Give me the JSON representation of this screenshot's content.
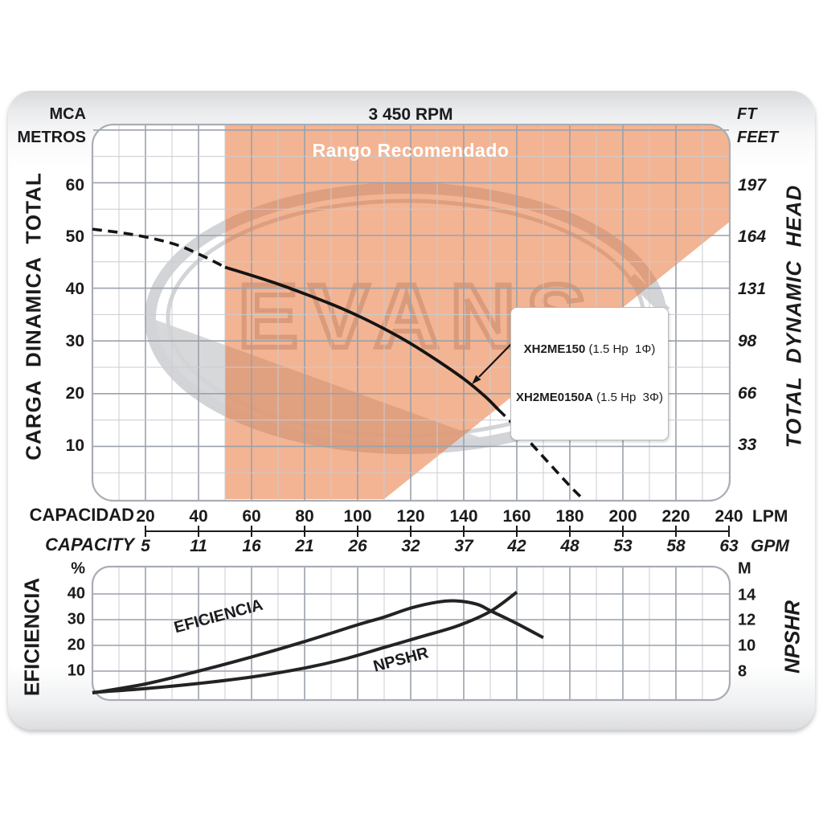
{
  "header": {
    "left_unit_line1": "MCA",
    "left_unit_line2": "METROS",
    "title": "3 450 RPM",
    "right_unit_line1": "FT",
    "right_unit_line2": "FEET"
  },
  "watermark": "EVANS",
  "main_chart": {
    "left_axis_label": "CARGA  DINAMICA  TOTAL",
    "right_axis_label": "TOTAL  DYNAMIC  HEAD",
    "recommended_label": "Rango Recomendado",
    "left_ticks": [
      "60",
      "50",
      "40",
      "30",
      "20",
      "10"
    ],
    "right_ticks": [
      "197",
      "164",
      "131",
      "98",
      "66",
      "33"
    ],
    "annotation": {
      "line1_model": "XH2ME150",
      "line1_spec": " (1.5 Hp  1Φ)",
      "line2_model": "XH2ME0150A",
      "line2_spec": " (1.5 Hp  3Φ)"
    }
  },
  "capacity_axis": {
    "label_top": "CAPACIDAD",
    "label_bottom": "CAPACITY",
    "lpm": [
      "20",
      "40",
      "60",
      "80",
      "100",
      "120",
      "140",
      "160",
      "180",
      "200",
      "220",
      "240"
    ],
    "gpm": [
      "5",
      "11",
      "16",
      "21",
      "26",
      "32",
      "37",
      "42",
      "48",
      "53",
      "58",
      "63"
    ],
    "unit_top": "LPM",
    "unit_bottom": "GPM"
  },
  "bottom_chart": {
    "left_unit": "%",
    "right_unit": "M",
    "left_axis_label": "EFICIENCIA",
    "right_axis_label": "NPSHR",
    "left_ticks": [
      "40",
      "30",
      "20",
      "10"
    ],
    "right_ticks": [
      "14",
      "12",
      "10",
      "8"
    ],
    "eff_curve_label": "EFICIENCIA",
    "npshr_curve_label": "NPSHR"
  },
  "colors": {
    "recommended_fill": "rgba(232,112,48,0.52)",
    "curve": "#141414",
    "grid_major": "#9ba1ab",
    "grid_minor": "#c9ccd2",
    "watermark_grey": "#d2d4d7"
  },
  "chart_data": [
    {
      "type": "line",
      "title": "3 450 RPM",
      "xlabel": "CAPACIDAD / CAPACITY",
      "x_unit": "LPM",
      "x_secondary_unit": "GPM",
      "ylabel": "CARGA DINAMICA TOTAL / TOTAL DYNAMIC HEAD",
      "y_unit_left": "MCA (metros)",
      "y_unit_right": "FT (feet)",
      "xlim": [
        0,
        240
      ],
      "ylim": [
        0,
        71
      ],
      "grid": true,
      "series": [
        {
          "name": "head-curve-extrapolated-low",
          "style": "dashed",
          "points": [
            [
              0,
              51.2
            ],
            [
              15,
              50.2
            ],
            [
              30,
              48.5
            ],
            [
              40,
              46.5
            ],
            [
              50,
              44
            ]
          ]
        },
        {
          "name": "head-curve XH2ME150 / XH2ME0150A",
          "style": "solid",
          "points": [
            [
              50,
              44
            ],
            [
              70,
              40.8
            ],
            [
              90,
              37
            ],
            [
              100,
              34.8
            ],
            [
              110,
              32.3
            ],
            [
              120,
              29.5
            ],
            [
              130,
              26.3
            ],
            [
              140,
              22.8
            ],
            [
              148,
              19.5
            ],
            [
              153,
              17
            ]
          ]
        },
        {
          "name": "head-curve-extrapolated-high",
          "style": "dashed",
          "points": [
            [
              153,
              17
            ],
            [
              160,
              13.5
            ],
            [
              170,
              8
            ],
            [
              180,
              2.5
            ],
            [
              185,
              0
            ]
          ]
        }
      ],
      "recommended_range_polygon": [
        [
          50,
          71
        ],
        [
          240,
          71
        ],
        [
          240,
          52.5
        ],
        [
          110,
          0
        ],
        [
          50,
          0
        ]
      ]
    },
    {
      "type": "line",
      "x_unit": "LPM",
      "xlim": [
        0,
        240
      ],
      "y_left_unit": "%",
      "y_left_ticks": [
        10,
        20,
        30,
        40
      ],
      "y_right_unit": "M",
      "y_right_ticks": [
        8,
        10,
        12,
        14
      ],
      "grid": true,
      "series": [
        {
          "name": "EFICIENCIA",
          "axis": "left",
          "unit": "%",
          "points": [
            [
              0,
              1.5
            ],
            [
              20,
              5
            ],
            [
              40,
              10
            ],
            [
              60,
              15.5
            ],
            [
              80,
              21.5
            ],
            [
              100,
              28
            ],
            [
              110,
              31
            ],
            [
              120,
              34.5
            ],
            [
              130,
              36.8
            ],
            [
              137,
              37.3
            ],
            [
              145,
              36
            ],
            [
              150,
              33.5
            ],
            [
              160,
              28.5
            ],
            [
              170,
              23
            ]
          ]
        },
        {
          "name": "NPSHR",
          "axis": "right",
          "unit": "M",
          "points": [
            [
              0,
              6.4
            ],
            [
              20,
              6.7
            ],
            [
              40,
              7.1
            ],
            [
              60,
              7.6
            ],
            [
              80,
              8.3
            ],
            [
              95,
              9
            ],
            [
              110,
              9.9
            ],
            [
              125,
              10.8
            ],
            [
              138,
              11.6
            ],
            [
              150,
              12.7
            ],
            [
              160,
              14.2
            ]
          ]
        }
      ]
    }
  ]
}
